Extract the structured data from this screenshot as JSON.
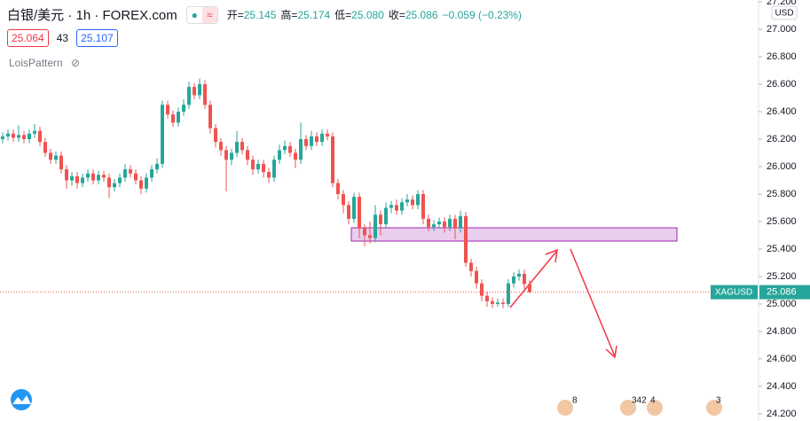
{
  "chart_data": {
    "type": "candlestick",
    "header": {
      "symbol": "白银/美元 · 1h · FOREX.com",
      "ohlc_labels": [
        "开=",
        "高=",
        "低=",
        "收="
      ],
      "ohlc_values": [
        "25.145",
        "25.174",
        "25.080",
        "25.086"
      ],
      "change": "−0.059 (−0.23%)",
      "bid": "25.064",
      "spread": "43",
      "ask": "25.107",
      "indicator": "LoisPattern"
    },
    "currency": "USD",
    "symbol_label": "XAGUSD",
    "event_labels": [
      "8",
      "342",
      "4",
      "3"
    ],
    "up_color": "#26a69a",
    "down_color": "#ef5350",
    "ylim": [
      24.148,
      27.213
    ],
    "yticks": [
      {
        "value": 24.2,
        "label": "24.200"
      },
      {
        "value": 24.4,
        "label": "24.400"
      },
      {
        "value": 24.6,
        "label": "24.600"
      },
      {
        "value": 24.8,
        "label": "24.800"
      },
      {
        "value": 25.0,
        "label": "25.000"
      },
      {
        "value": 25.2,
        "label": "25.200"
      },
      {
        "value": 25.4,
        "label": "25.400"
      },
      {
        "value": 25.6,
        "label": "25.600"
      },
      {
        "value": 25.8,
        "label": "25.800"
      },
      {
        "value": 26.0,
        "label": "26.000"
      },
      {
        "value": 26.2,
        "label": "26.200"
      },
      {
        "value": 26.4,
        "label": "26.400"
      },
      {
        "value": 26.6,
        "label": "26.600"
      },
      {
        "value": 26.8,
        "label": "26.800"
      },
      {
        "value": 27.0,
        "label": "27.000"
      },
      {
        "value": 27.2,
        "label": "27.200"
      }
    ],
    "open": [
      26.2,
      26.22,
      26.24,
      26.21,
      26.23,
      26.2,
      26.24,
      26.26,
      26.18,
      26.1,
      26.05,
      26.08,
      25.98,
      25.9,
      25.93,
      25.88,
      25.92,
      25.95,
      25.9,
      25.94,
      25.92,
      25.85,
      25.88,
      25.92,
      25.98,
      25.95,
      25.9,
      25.84,
      25.92,
      25.98,
      26.02,
      26.45,
      26.38,
      26.32,
      26.4,
      26.45,
      26.58,
      26.52,
      26.6,
      26.45,
      26.28,
      26.18,
      26.12,
      26.05,
      26.1,
      26.18,
      26.12,
      26.05,
      25.98,
      26.02,
      25.96,
      25.92,
      26.05,
      26.12,
      26.15,
      26.1,
      26.05,
      26.2,
      26.15,
      26.22,
      26.18,
      26.24,
      26.22,
      25.88,
      25.8,
      25.72,
      25.62,
      25.78,
      25.55,
      25.5,
      25.48,
      25.65,
      25.58,
      25.7,
      25.72,
      25.68,
      25.74,
      25.76,
      25.72,
      25.8,
      25.62,
      25.56,
      25.58,
      25.6,
      25.56,
      25.62,
      25.55,
      25.64,
      25.3,
      25.24,
      25.15,
      25.06,
      25.02,
      25.0,
      25.01,
      25.0,
      25.15,
      25.2,
      25.22,
      25.145
    ],
    "high": [
      26.25,
      26.27,
      26.27,
      26.3,
      26.26,
      26.27,
      26.31,
      26.29,
      26.21,
      26.13,
      26.11,
      26.11,
      26.01,
      25.96,
      25.96,
      25.95,
      25.98,
      25.98,
      25.97,
      25.97,
      25.95,
      25.91,
      25.95,
      26.02,
      26.01,
      25.98,
      25.93,
      25.95,
      26.01,
      26.06,
      26.48,
      26.48,
      26.41,
      26.43,
      26.49,
      26.62,
      26.61,
      26.64,
      26.63,
      26.48,
      26.31,
      26.21,
      26.15,
      26.13,
      26.26,
      26.21,
      26.15,
      26.08,
      26.05,
      26.05,
      25.99,
      26.08,
      26.16,
      26.19,
      26.18,
      26.13,
      26.32,
      26.23,
      26.26,
      26.25,
      26.27,
      26.27,
      26.25,
      25.91,
      25.83,
      25.75,
      25.81,
      25.81,
      25.58,
      25.6,
      25.72,
      25.68,
      25.74,
      25.75,
      25.76,
      25.77,
      25.8,
      25.79,
      25.83,
      25.83,
      25.65,
      25.61,
      25.63,
      25.63,
      25.65,
      25.65,
      25.68,
      25.67,
      25.33,
      25.27,
      25.18,
      25.09,
      25.05,
      25.04,
      25.04,
      25.18,
      25.23,
      25.25,
      25.25,
      25.174
    ],
    "low": [
      26.17,
      26.19,
      26.18,
      26.18,
      26.17,
      26.17,
      26.21,
      26.15,
      26.07,
      26.02,
      26.02,
      25.95,
      25.84,
      25.86,
      25.84,
      25.85,
      25.89,
      25.87,
      25.87,
      25.89,
      25.77,
      25.82,
      25.85,
      25.89,
      25.92,
      25.87,
      25.8,
      25.81,
      25.89,
      25.95,
      25.99,
      26.35,
      26.29,
      26.29,
      26.37,
      26.42,
      26.49,
      26.49,
      26.42,
      26.24,
      26.14,
      26.08,
      25.82,
      26.01,
      26.07,
      26.09,
      26.01,
      25.94,
      25.95,
      25.92,
      25.88,
      25.89,
      26.02,
      26.09,
      26.07,
      25.99,
      26.02,
      26.12,
      26.12,
      26.15,
      26.15,
      26.19,
      25.85,
      25.76,
      25.66,
      25.58,
      25.59,
      25.48,
      25.42,
      25.44,
      25.45,
      25.5,
      25.55,
      25.66,
      25.65,
      25.65,
      25.71,
      25.69,
      25.69,
      25.58,
      25.53,
      25.53,
      25.55,
      25.52,
      25.53,
      25.47,
      25.52,
      25.27,
      25.2,
      25.11,
      25.02,
      24.98,
      24.97,
      24.98,
      24.97,
      24.98,
      25.12,
      25.17,
      25.11,
      25.08
    ],
    "close": [
      26.22,
      26.24,
      26.21,
      26.23,
      26.2,
      26.24,
      26.26,
      26.18,
      26.1,
      26.05,
      26.08,
      25.98,
      25.9,
      25.93,
      25.88,
      25.92,
      25.95,
      25.9,
      25.94,
      25.92,
      25.85,
      25.88,
      25.92,
      25.98,
      25.95,
      25.9,
      25.84,
      25.92,
      25.98,
      26.02,
      26.45,
      26.38,
      26.32,
      26.4,
      26.45,
      26.58,
      26.52,
      26.6,
      26.45,
      26.28,
      26.18,
      26.12,
      26.05,
      26.1,
      26.18,
      26.12,
      26.05,
      25.98,
      26.02,
      25.96,
      25.92,
      26.05,
      26.12,
      26.15,
      26.1,
      26.05,
      26.2,
      26.15,
      26.22,
      26.18,
      26.24,
      26.22,
      25.88,
      25.8,
      25.72,
      25.62,
      25.78,
      25.55,
      25.5,
      25.48,
      25.65,
      25.58,
      25.7,
      25.72,
      25.68,
      25.74,
      25.76,
      25.72,
      25.8,
      25.62,
      25.56,
      25.58,
      25.6,
      25.56,
      25.62,
      25.55,
      25.64,
      25.3,
      25.24,
      25.15,
      25.06,
      25.02,
      25.0,
      25.01,
      25.0,
      25.15,
      25.2,
      25.22,
      25.145,
      25.086
    ]
  }
}
